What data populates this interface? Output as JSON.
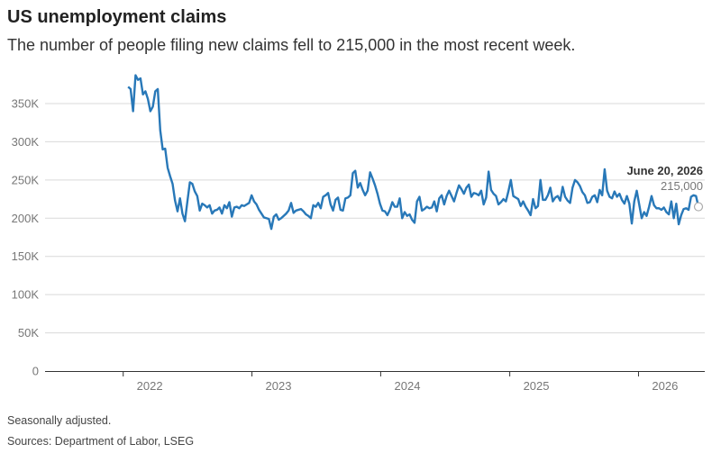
{
  "chart_data": {
    "type": "line",
    "title": "US unemployment claims",
    "subtitle": "The number of people filing new claims fell to 215,000 in the most recent week.",
    "note": "Seasonally adjusted.",
    "source": "Sources: Department of Labor, LSEG",
    "ylim": [
      0,
      400000
    ],
    "y_ticks": [
      0,
      50000,
      100000,
      150000,
      200000,
      250000,
      300000,
      350000
    ],
    "y_tick_labels": [
      "0",
      "50K",
      "100K",
      "150K",
      "200K",
      "250K",
      "300K",
      "350K"
    ],
    "x_ticks": [
      "2022",
      "2023",
      "2024",
      "2025",
      "2026"
    ],
    "x_range": [
      "2021-06-19",
      "2026-06-20"
    ],
    "grid": true,
    "line_color": "#2878b8",
    "annotation": {
      "date_label": "June 20, 2026",
      "value_label": "215,000",
      "value": 215000
    },
    "series": [
      {
        "values": [
          372000,
          369000,
          340000,
          387000,
          381000,
          383000,
          362000,
          366000,
          356000,
          340000,
          346000,
          366000,
          369000,
          315000,
          290000,
          291000,
          266000,
          255000,
          245000,
          223000,
          209000,
          226000,
          206000,
          196000,
          222000,
          247000,
          245000,
          235000,
          229000,
          210000,
          219000,
          217000,
          214000,
          217000,
          206000,
          210000,
          211000,
          214000,
          206000,
          217000,
          213000,
          221000,
          202000,
          214000,
          215000,
          213000,
          217000,
          216000,
          218000,
          220000,
          230000,
          222000,
          218000,
          211000,
          206000,
          201000,
          200000,
          199000,
          186000,
          202000,
          205000,
          198000,
          200000,
          203000,
          206000,
          210000,
          220000,
          207000,
          210000,
          211000,
          212000,
          209000,
          205000,
          203000,
          200000,
          217000,
          215000,
          220000,
          213000,
          228000,
          230000,
          233000,
          218000,
          210000,
          224000,
          227000,
          211000,
          210000,
          226000,
          227000,
          230000,
          259000,
          262000,
          240000,
          246000,
          237000,
          230000,
          236000,
          260000,
          252000,
          243000,
          232000,
          219000,
          210000,
          209000,
          204000,
          211000,
          221000,
          215000,
          215000,
          226000,
          200000,
          208000,
          203000,
          205000,
          198000,
          194000,
          222000,
          228000,
          210000,
          212000,
          215000,
          213000,
          214000,
          222000,
          209000,
          226000,
          230000,
          218000,
          229000,
          236000,
          229000,
          222000,
          233000,
          243000,
          238000,
          232000,
          240000,
          244000,
          228000,
          233000,
          232000,
          230000,
          236000,
          218000,
          227000,
          261000,
          237000,
          232000,
          229000,
          218000,
          221000,
          225000,
          222000,
          235000,
          250000,
          229000,
          227000,
          225000,
          216000,
          222000,
          215000,
          210000,
          204000,
          225000,
          213000,
          216000,
          250000,
          224000,
          224000,
          230000,
          240000,
          222000,
          227000,
          229000,
          223000,
          241000,
          228000,
          223000,
          220000,
          240000,
          250000,
          247000,
          242000,
          234000,
          230000,
          220000,
          221000,
          228000,
          230000,
          221000,
          237000,
          230000,
          264000,
          236000,
          228000,
          226000,
          235000,
          228000,
          232000,
          224000,
          219000,
          229000,
          219000,
          193000,
          222000,
          236000,
          218000,
          200000,
          208000,
          203000,
          215000,
          229000,
          217000,
          213000,
          213000,
          211000,
          214000,
          208000,
          205000,
          222000,
          200000,
          219000,
          192000,
          204000,
          212000,
          213000,
          211000,
          228000,
          230000,
          229000,
          215000
        ]
      }
    ]
  }
}
